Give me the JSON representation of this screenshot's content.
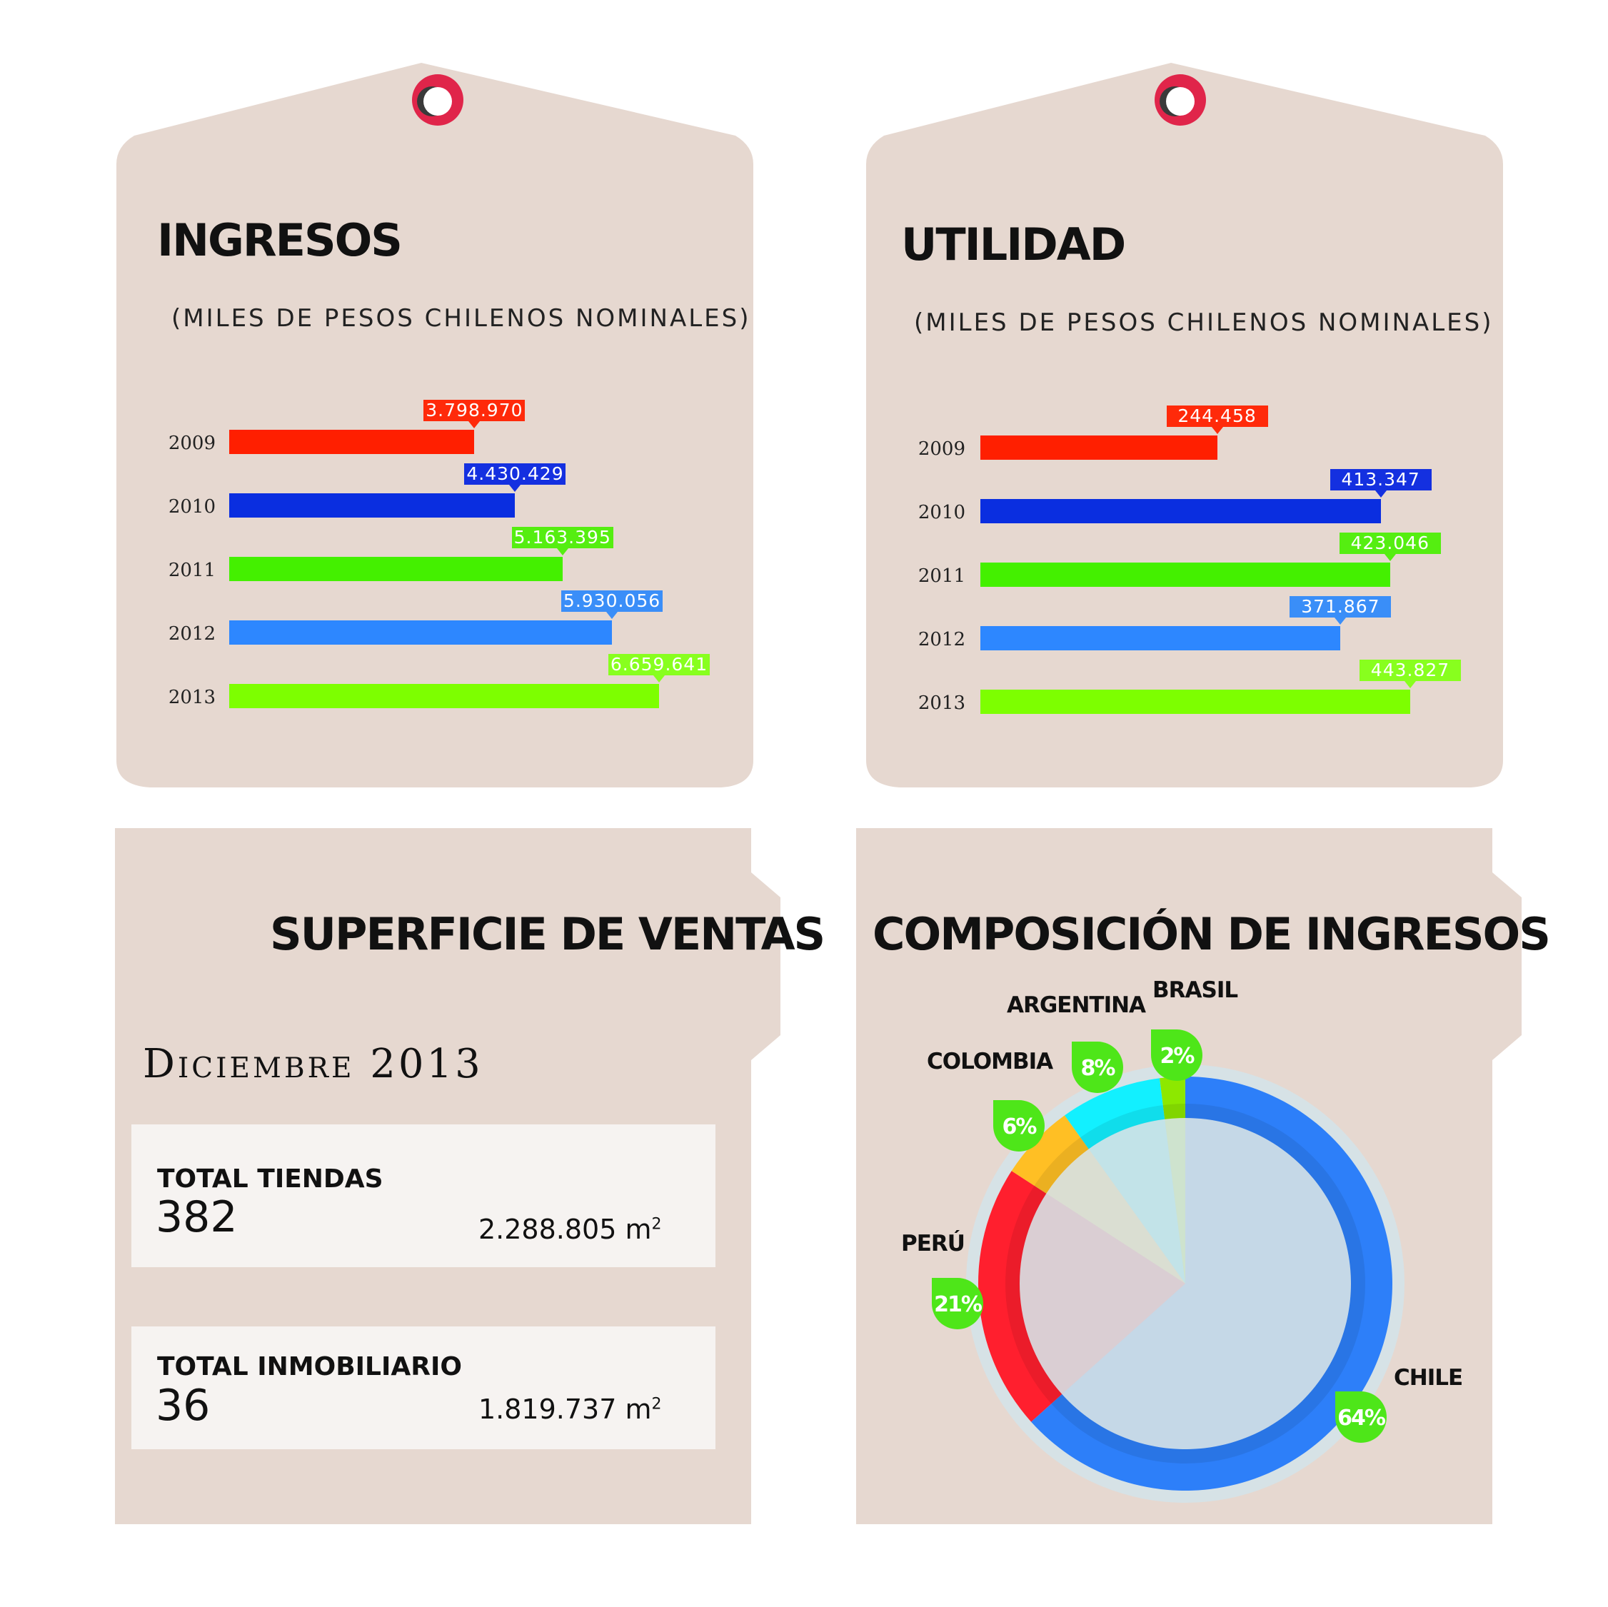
{
  "chart_data": [
    {
      "type": "bar",
      "title": "INGRESOS",
      "subtitle": "(MILES DE PESOS CHILENOS NOMINALES)",
      "categories": [
        "2009",
        "2010",
        "2011",
        "2012",
        "2013"
      ],
      "values": [
        3798970,
        4430429,
        5163395,
        5930056,
        6659641
      ],
      "value_labels": [
        "3.798.970",
        "4.430.429",
        "5.163.395",
        "5.930.056",
        "6.659.641"
      ],
      "colors": [
        "#ff1f00",
        "#0a2ee0",
        "#44f000",
        "#2d87ff",
        "#7dff00"
      ],
      "label_colors": [
        "#ff2a0a",
        "#1430e0",
        "#55ee11",
        "#3a8ef8",
        "#88ff1e"
      ],
      "xlim": [
        0,
        6659641
      ]
    },
    {
      "type": "bar",
      "title": "UTILIDAD",
      "subtitle": "(MILES DE PESOS CHILENOS NOMINALES)",
      "categories": [
        "2009",
        "2010",
        "2011",
        "2012",
        "2013"
      ],
      "values": [
        244458,
        413347,
        423046,
        371867,
        443827
      ],
      "value_labels": [
        "244.458",
        "413.347",
        "423.046",
        "371.867",
        "443.827"
      ],
      "colors": [
        "#ff1f00",
        "#0a2ee0",
        "#44f000",
        "#2d87ff",
        "#7dff00"
      ],
      "label_colors": [
        "#ff2a0a",
        "#1430e0",
        "#55ee11",
        "#3a8ef8",
        "#88ff1e"
      ],
      "xlim": [
        0,
        443827
      ]
    },
    {
      "type": "pie",
      "title": "COMPOSICIÓN DE INGRESOS",
      "slices": [
        {
          "name": "CHILE",
          "value": 64,
          "label": "64%",
          "color": "#2d7ff9"
        },
        {
          "name": "PERÚ",
          "value": 21,
          "label": "21%",
          "color": "#ff1f2e"
        },
        {
          "name": "COLOMBIA",
          "value": 6,
          "label": "6%",
          "color": "#ffbf24"
        },
        {
          "name": "ARGENTINA",
          "value": 8,
          "label": "8%",
          "color": "#12f0ff"
        },
        {
          "name": "BRASIL",
          "value": 2,
          "label": "2%",
          "color": "#8de800"
        }
      ]
    }
  ],
  "superficie": {
    "title": "SUPERFICIE DE VENTAS",
    "date": "Diciembre 2013",
    "tiendas": {
      "label": "TOTAL TIENDAS",
      "count": "382",
      "area": "2.288.805 m",
      "area_sup": "2"
    },
    "inmobiliario": {
      "label": "TOTAL INMOBILIARIO",
      "count": "36",
      "area": "1.819.737 m",
      "area_sup": "2"
    }
  },
  "colors": {
    "card": "#e6d8d0",
    "ring": "#e0254a",
    "badge": "#4ee619"
  }
}
